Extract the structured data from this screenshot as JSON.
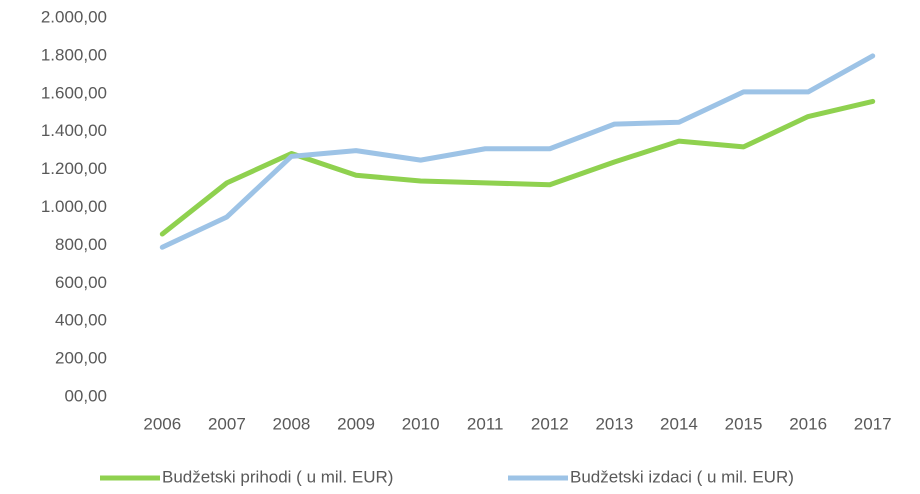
{
  "chart_data": {
    "type": "line",
    "categories": [
      "2006",
      "2007",
      "2008",
      "2009",
      "2010",
      "2011",
      "2012",
      "2013",
      "2014",
      "2015",
      "2016",
      "2017"
    ],
    "series": [
      {
        "name": "Budžetski prihodi ( u mil. EUR)",
        "color": "#8fd14f",
        "values": [
          860,
          1130,
          1285,
          1170,
          1140,
          1130,
          1120,
          1240,
          1350,
          1320,
          1480,
          1560
        ]
      },
      {
        "name": "Budžetski izdaci ( u mil. EUR)",
        "color": "#9dc3e6",
        "values": [
          790,
          950,
          1270,
          1300,
          1250,
          1310,
          1310,
          1440,
          1450,
          1610,
          1610,
          1800
        ]
      }
    ],
    "ylim": [
      0,
      2000
    ],
    "yticks": [
      {
        "value": 0,
        "label": "00,00"
      },
      {
        "value": 200,
        "label": "200,00"
      },
      {
        "value": 400,
        "label": "400,00"
      },
      {
        "value": 600,
        "label": "600,00"
      },
      {
        "value": 800,
        "label": "800,00"
      },
      {
        "value": 1000,
        "label": "1.000,00"
      },
      {
        "value": 1200,
        "label": "1.200,00"
      },
      {
        "value": 1400,
        "label": "1.400,00"
      },
      {
        "value": 1600,
        "label": "1.600,00"
      },
      {
        "value": 1800,
        "label": "1.800,00"
      },
      {
        "value": 2000,
        "label": "2.000,00"
      }
    ],
    "grid": false,
    "legend": "bottom"
  }
}
